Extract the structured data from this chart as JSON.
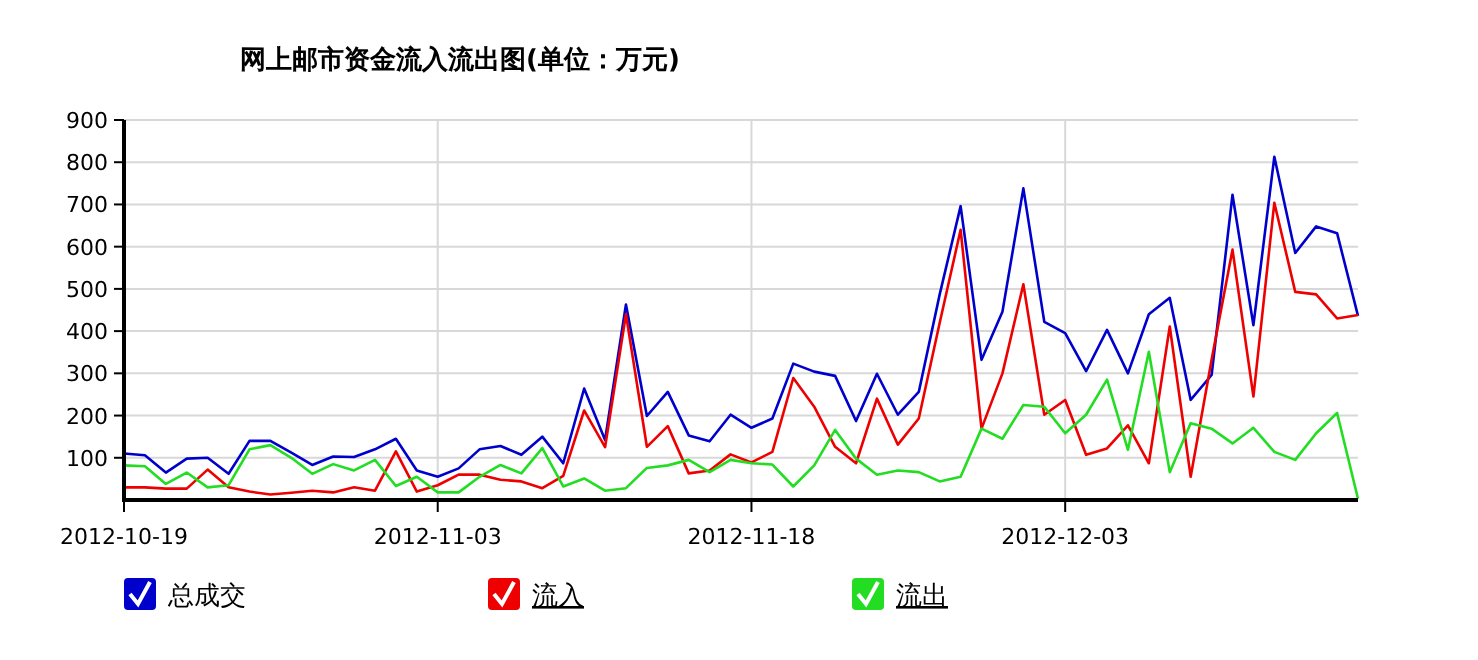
{
  "chart_data": {
    "type": "line",
    "title": "网上邮市资金流入流出图(单位：万元)",
    "x": [
      "2012-10-19",
      "2012-10-20",
      "2012-10-21",
      "2012-10-22",
      "2012-10-23",
      "2012-10-24",
      "2012-10-25",
      "2012-10-26",
      "2012-10-27",
      "2012-10-28",
      "2012-10-29",
      "2012-10-30",
      "2012-10-31",
      "2012-11-01",
      "2012-11-02",
      "2012-11-03",
      "2012-11-04",
      "2012-11-05",
      "2012-11-06",
      "2012-11-07",
      "2012-11-08",
      "2012-11-09",
      "2012-11-10",
      "2012-11-11",
      "2012-11-12",
      "2012-11-13",
      "2012-11-14",
      "2012-11-15",
      "2012-11-16",
      "2012-11-17",
      "2012-11-18",
      "2012-11-19",
      "2012-11-20",
      "2012-11-21",
      "2012-11-22",
      "2012-11-23",
      "2012-11-24",
      "2012-11-25",
      "2012-11-26",
      "2012-11-27",
      "2012-11-28",
      "2012-11-29",
      "2012-11-30",
      "2012-12-01",
      "2012-12-02",
      "2012-12-03",
      "2012-12-04",
      "2012-12-05",
      "2012-12-06",
      "2012-12-07",
      "2012-12-08",
      "2012-12-09",
      "2012-12-10",
      "2012-12-11",
      "2012-12-12",
      "2012-12-13",
      "2012-12-14",
      "2012-12-15",
      "2012-12-16",
      "2012-12-17"
    ],
    "series": [
      {
        "name": "总成交",
        "color": "#0000cc",
        "values": [
          110,
          106,
          65,
          98,
          100,
          62,
          140,
          140,
          112,
          83,
          103,
          102,
          120,
          145,
          70,
          55,
          75,
          120,
          128,
          107,
          150,
          87,
          264,
          142,
          463,
          199,
          256,
          153,
          139,
          202,
          171,
          193,
          323,
          304,
          294,
          187,
          299,
          202,
          256,
          487,
          696,
          332,
          446,
          738,
          422,
          395,
          305,
          403,
          300,
          440,
          479,
          237,
          296,
          723,
          414,
          813,
          585,
          648,
          632,
          436
        ]
      },
      {
        "name": "流入",
        "color": "#ee0000",
        "values": [
          30,
          30,
          27,
          27,
          72,
          30,
          20,
          13,
          17,
          22,
          18,
          30,
          22,
          115,
          20,
          35,
          60,
          60,
          48,
          44,
          28,
          57,
          212,
          125,
          440,
          126,
          175,
          63,
          70,
          108,
          89,
          114,
          289,
          221,
          126,
          87,
          240,
          131,
          193,
          420,
          640,
          169,
          300,
          511,
          202,
          237,
          107,
          122,
          177,
          87,
          411,
          55,
          332,
          593,
          245,
          704,
          493,
          487,
          430,
          438
        ]
      },
      {
        "name": "流出",
        "color": "#22dd22",
        "values": [
          82,
          80,
          38,
          65,
          30,
          35,
          120,
          130,
          100,
          62,
          85,
          70,
          95,
          33,
          55,
          18,
          18,
          55,
          83,
          63,
          123,
          32,
          51,
          22,
          28,
          76,
          82,
          95,
          66,
          95,
          87,
          84,
          32,
          82,
          166,
          98,
          60,
          70,
          66,
          44,
          55,
          169,
          145,
          225,
          221,
          158,
          202,
          285,
          119,
          351,
          66,
          182,
          169,
          134,
          171,
          114,
          95,
          158,
          206,
          3
        ]
      }
    ],
    "xlim": [
      "2012-10-19",
      "2012-12-17"
    ],
    "xticks": [
      {
        "value": "2012-10-19",
        "label": "2012-10-19"
      },
      {
        "value": "2012-11-03",
        "label": "2012-11-03"
      },
      {
        "value": "2012-11-18",
        "label": "2012-11-18"
      },
      {
        "value": "2012-12-03",
        "label": "2012-12-03"
      }
    ],
    "ylim": [
      0,
      900
    ],
    "yticks": [
      100,
      200,
      300,
      400,
      500,
      600,
      700,
      800,
      900
    ],
    "grid": true,
    "legend": "bottom",
    "marker": "none",
    "line_style": "solid"
  }
}
